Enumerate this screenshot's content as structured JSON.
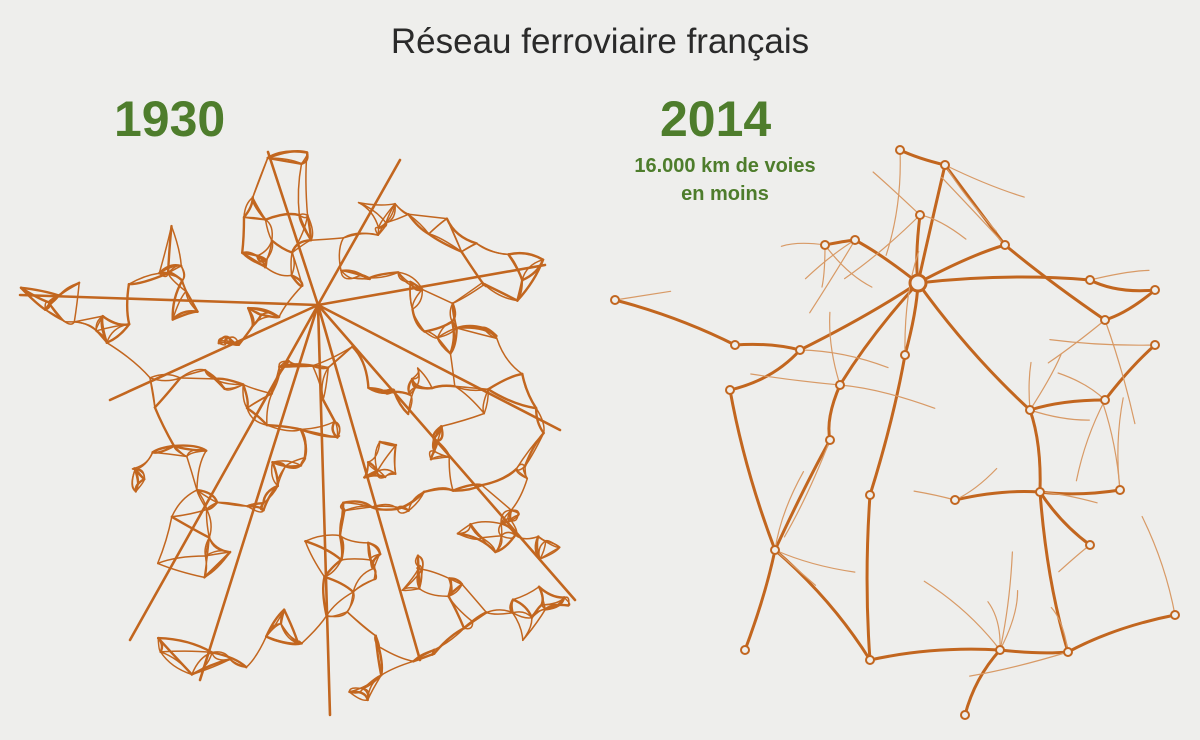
{
  "title": "Réseau ferroviaire français",
  "maps": [
    {
      "year": "1930",
      "caption": []
    },
    {
      "year": "2014",
      "caption": [
        "16.000 km de voies",
        "en moins"
      ]
    }
  ],
  "colors": {
    "background": "#eeeeec",
    "rail": "#c2661f",
    "rail_light": "#d89a66",
    "year_text": "#4e7d2c",
    "title_text": "#2a2a2a"
  }
}
